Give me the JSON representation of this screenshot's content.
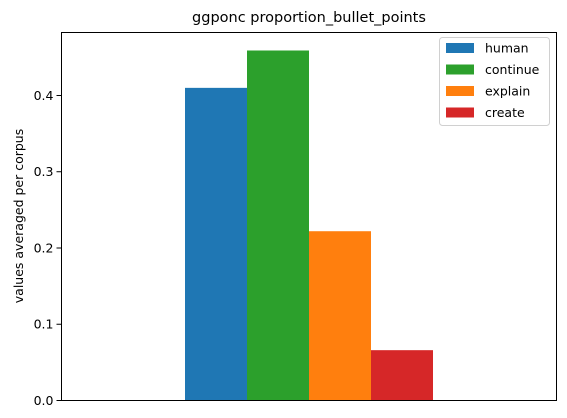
{
  "chart_data": {
    "type": "bar",
    "title": "ggponc proportion_bullet_points",
    "xlabel": "",
    "ylabel": "values averaged per corpus",
    "ylim": [
      0,
      0.4826
    ],
    "yticks": [
      0.0,
      0.1,
      0.2,
      0.3,
      0.4
    ],
    "ytick_labels": [
      "0.0",
      "0.1",
      "0.2",
      "0.3",
      "0.4"
    ],
    "grid": false,
    "legend_position": "top-right",
    "series": [
      {
        "name": "human",
        "value": 0.41,
        "color": "#1f77b4"
      },
      {
        "name": "continue",
        "value": 0.459,
        "color": "#2ca02c"
      },
      {
        "name": "explain",
        "value": 0.222,
        "color": "#ff7f0e"
      },
      {
        "name": "create",
        "value": 0.066,
        "color": "#d62728"
      }
    ]
  }
}
